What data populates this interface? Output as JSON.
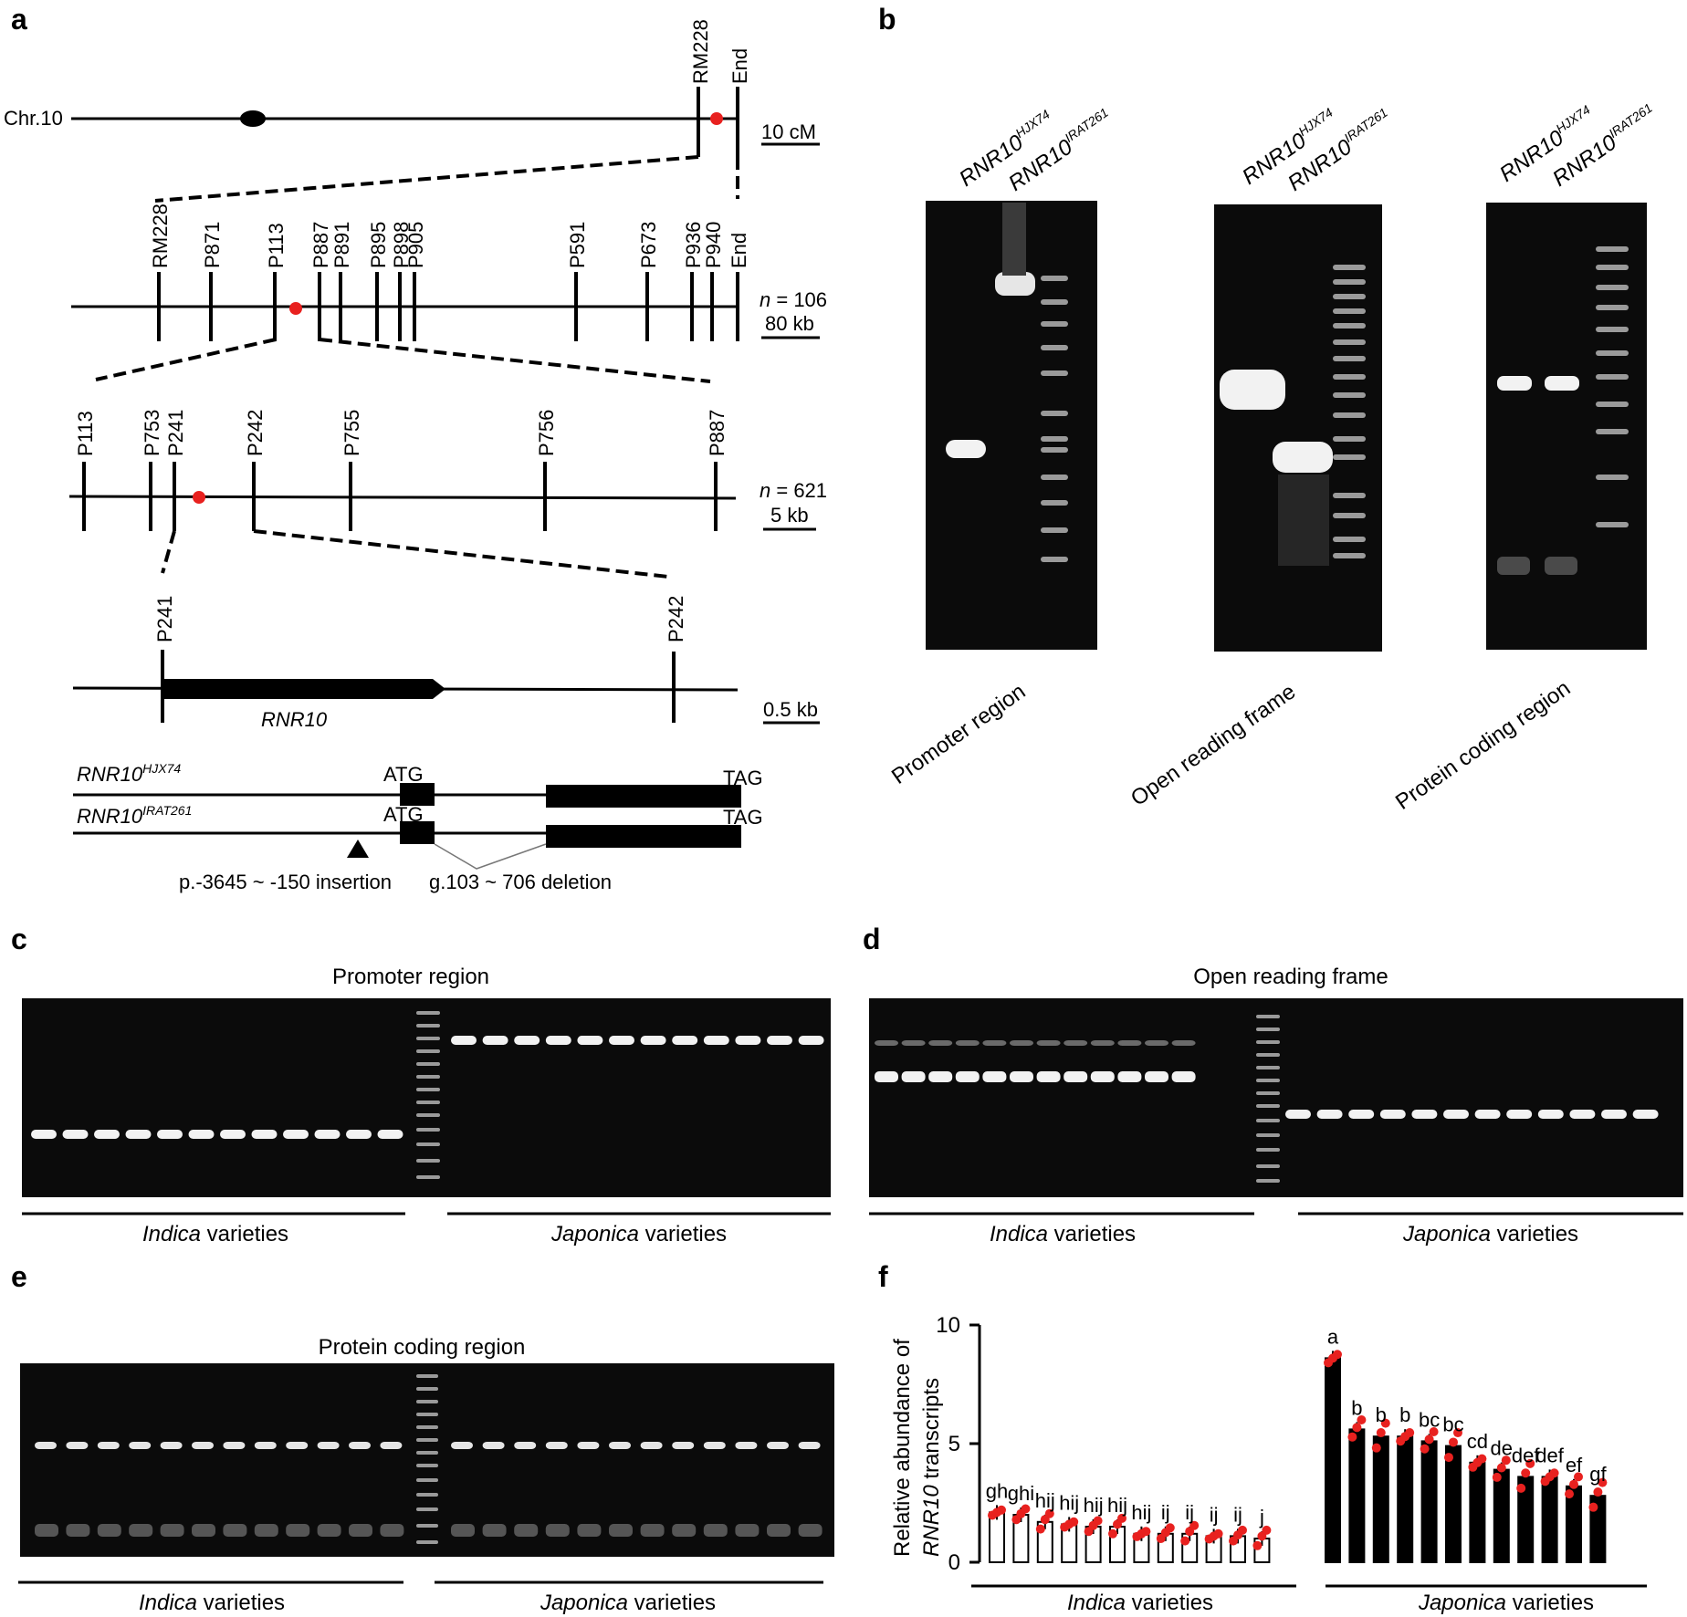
{
  "panels": {
    "a": "a",
    "b": "b",
    "c": "c",
    "d": "d",
    "e": "e",
    "f": "f"
  },
  "panel_a": {
    "chr_label": "Chr.10",
    "level1_markers": [
      "RM228",
      "End"
    ],
    "scale1": "10 cM",
    "level2_markers": [
      "RM228",
      "P871",
      "P113",
      "P887",
      "P891",
      "P895",
      "P898",
      "P905",
      "P591",
      "P673",
      "P936",
      "P940",
      "End"
    ],
    "n_symbol": "n",
    "n2_value": " = 106",
    "scale2": "80 kb",
    "level3_markers": [
      "P113",
      "P753",
      "P241",
      "P242",
      "P755",
      "P756",
      "P887"
    ],
    "n3_value": " = 621",
    "scale3": "5 kb",
    "level4_markers": [
      "P241",
      "P242"
    ],
    "gene_name": "RNR10",
    "scale4": "0.5 kb",
    "allele_base": "RNR10",
    "allele1_sup": "HJX74",
    "allele2_sup": "IRAT261",
    "atg": "ATG",
    "tag": "TAG",
    "insertion_note": "p.-3645 ~ -150 insertion",
    "deletion_note": "g.103 ~ 706 deletion"
  },
  "panel_b": {
    "allele_base": "RNR10",
    "sup1": "HJX74",
    "sup2": "IRAT261",
    "gel_labels": [
      "Promoter region",
      "Open reading frame",
      "Protein coding region"
    ]
  },
  "panel_c": {
    "title": "Promoter region",
    "group1": "Indica",
    "group2": "Japonica",
    "suffix": " varieties"
  },
  "panel_d": {
    "title": "Open reading frame",
    "group1": "Indica",
    "group2": "Japonica",
    "suffix": " varieties"
  },
  "panel_e": {
    "title": "Protein coding region",
    "group1": "Indica",
    "group2": "Japonica",
    "suffix": " varieties"
  },
  "chart_data": {
    "type": "bar",
    "ylabel_line1": "Relative abundance of",
    "ylabel_gene": "RNR10",
    "ylabel_rest": " transcripts",
    "ylim": [
      0,
      10
    ],
    "yticks": [
      0,
      5,
      10
    ],
    "groups": [
      {
        "name": "Indica",
        "suffix": " varieties",
        "values": [
          2.1,
          2.0,
          1.7,
          1.6,
          1.5,
          1.5,
          1.2,
          1.2,
          1.2,
          1.1,
          1.1,
          1.0
        ],
        "letters": [
          "gh",
          "ghi",
          "hij",
          "hij",
          "hij",
          "hij",
          "hij",
          "ij",
          "ij",
          "ij",
          "ij",
          "j"
        ]
      },
      {
        "name": "Japonica",
        "suffix": " varieties",
        "values": [
          8.6,
          5.6,
          5.3,
          5.3,
          5.1,
          4.9,
          4.2,
          3.9,
          3.6,
          3.6,
          3.2,
          2.8
        ],
        "letters": [
          "a",
          "b",
          "b",
          "b",
          "bc",
          "bc",
          "cd",
          "de",
          "def",
          "def",
          "ef",
          "gf"
        ]
      }
    ]
  },
  "colors": {
    "bar": "#000000",
    "point": "#e8211f",
    "gel_bg": "#0b0b0b",
    "band": "#f2f2f2",
    "marker": "#e8211f"
  }
}
